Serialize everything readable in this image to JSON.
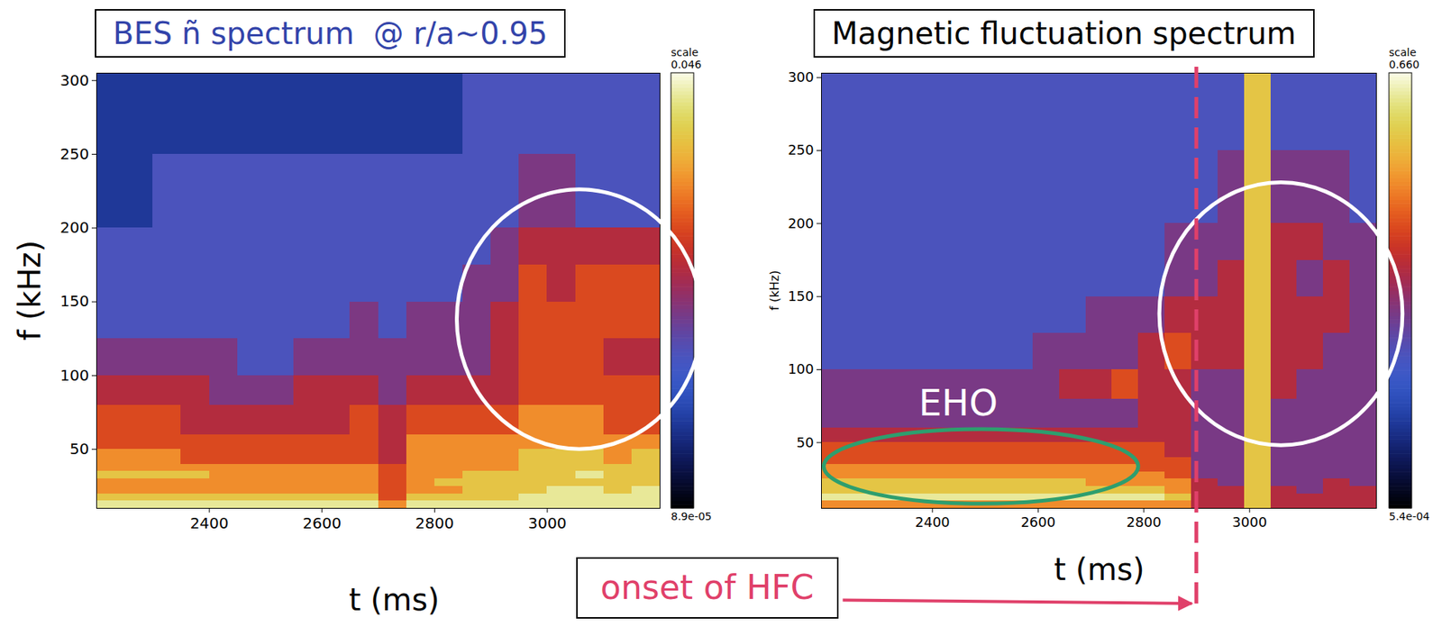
{
  "chart_data": [
    {
      "type": "heatmap",
      "title": "BES ñ spectrum  @ r/a~0.95",
      "x_label": "t (ms)",
      "y_label": "f (kHz)",
      "xlim": [
        2200,
        3200
      ],
      "xticks": [
        2400,
        2600,
        2800,
        3000
      ],
      "ylim": [
        10,
        305
      ],
      "yticks": [
        50,
        100,
        150,
        200,
        250,
        300
      ],
      "x_edges": [
        2200,
        2250,
        2300,
        2350,
        2400,
        2450,
        2500,
        2550,
        2600,
        2650,
        2700,
        2750,
        2800,
        2850,
        2900,
        2950,
        3000,
        3050,
        3100,
        3150,
        3200
      ],
      "y_edges": [
        10,
        15,
        20,
        25,
        30,
        35,
        40,
        50,
        60,
        80,
        100,
        125,
        150,
        175,
        200,
        250,
        305
      ],
      "cells": [
        [
          0.033,
          0.033,
          0.033,
          0.033,
          0.033,
          0.033,
          0.033,
          0.033,
          0.033,
          0.033,
          0.0096,
          0.033,
          0.033,
          0.033,
          0.033,
          0.033,
          0.033,
          0.033,
          0.033,
          0.033
        ],
        [
          0.018,
          0.018,
          0.018,
          0.018,
          0.018,
          0.018,
          0.018,
          0.018,
          0.018,
          0.018,
          0.005,
          0.018,
          0.018,
          0.018,
          0.018,
          0.033,
          0.033,
          0.033,
          0.033,
          0.033
        ],
        [
          0.0096,
          0.0096,
          0.0096,
          0.0096,
          0.0096,
          0.0096,
          0.0096,
          0.0096,
          0.0096,
          0.0096,
          0.005,
          0.0096,
          0.0096,
          0.018,
          0.018,
          0.018,
          0.033,
          0.033,
          0.018,
          0.033
        ],
        [
          0.0096,
          0.0096,
          0.0096,
          0.0096,
          0.0096,
          0.0096,
          0.0096,
          0.0096,
          0.0096,
          0.0096,
          0.005,
          0.0096,
          0.018,
          0.018,
          0.018,
          0.018,
          0.018,
          0.018,
          0.018,
          0.018
        ],
        [
          0.018,
          0.018,
          0.018,
          0.018,
          0.0096,
          0.0096,
          0.0096,
          0.0096,
          0.0096,
          0.0096,
          0.005,
          0.0096,
          0.0096,
          0.018,
          0.018,
          0.018,
          0.018,
          0.033,
          0.018,
          0.018
        ],
        [
          0.0096,
          0.0096,
          0.0096,
          0.0096,
          0.0096,
          0.0096,
          0.0096,
          0.0096,
          0.0096,
          0.0096,
          0.005,
          0.0096,
          0.0096,
          0.0096,
          0.0096,
          0.018,
          0.018,
          0.018,
          0.018,
          0.018
        ],
        [
          0.0096,
          0.0096,
          0.0096,
          0.005,
          0.005,
          0.005,
          0.005,
          0.005,
          0.005,
          0.005,
          0.0028,
          0.0096,
          0.0096,
          0.0096,
          0.0096,
          0.018,
          0.018,
          0.018,
          0.0096,
          0.018
        ],
        [
          0.005,
          0.005,
          0.005,
          0.005,
          0.005,
          0.005,
          0.005,
          0.005,
          0.005,
          0.005,
          0.0028,
          0.0096,
          0.0096,
          0.0096,
          0.0096,
          0.0096,
          0.0096,
          0.0096,
          0.0096,
          0.0096
        ],
        [
          0.005,
          0.005,
          0.005,
          0.0028,
          0.0028,
          0.0028,
          0.0028,
          0.0028,
          0.0028,
          0.005,
          0.0028,
          0.005,
          0.005,
          0.005,
          0.005,
          0.0096,
          0.0096,
          0.0096,
          0.005,
          0.005
        ],
        [
          0.0028,
          0.0028,
          0.0028,
          0.0028,
          0.0015,
          0.0015,
          0.0015,
          0.0028,
          0.0028,
          0.0028,
          0.0015,
          0.0028,
          0.0028,
          0.0028,
          0.0028,
          0.005,
          0.005,
          0.005,
          0.005,
          0.005
        ],
        [
          0.0015,
          0.0015,
          0.0015,
          0.0015,
          0.0015,
          0.0008,
          0.0008,
          0.0015,
          0.0015,
          0.0015,
          0.0015,
          0.0015,
          0.0015,
          0.0015,
          0.0028,
          0.005,
          0.005,
          0.005,
          0.0028,
          0.0028
        ],
        [
          0.0008,
          0.0008,
          0.0008,
          0.0008,
          0.0008,
          0.0008,
          0.0008,
          0.0008,
          0.0008,
          0.0015,
          0.0008,
          0.0015,
          0.0015,
          0.0015,
          0.0028,
          0.005,
          0.005,
          0.005,
          0.005,
          0.005
        ],
        [
          0.0008,
          0.0008,
          0.0008,
          0.0008,
          0.0008,
          0.0008,
          0.0008,
          0.0008,
          0.0008,
          0.0008,
          0.0008,
          0.0008,
          0.0008,
          0.0015,
          0.0015,
          0.005,
          0.0028,
          0.005,
          0.005,
          0.005
        ],
        [
          0.0008,
          0.0008,
          0.0008,
          0.0008,
          0.0008,
          0.0008,
          0.0008,
          0.0008,
          0.0008,
          0.0008,
          0.0008,
          0.0008,
          0.0008,
          0.0008,
          0.0015,
          0.0028,
          0.0028,
          0.0028,
          0.0028,
          0.0028
        ],
        [
          0.0003,
          0.0003,
          0.0008,
          0.0008,
          0.0008,
          0.0008,
          0.0008,
          0.0008,
          0.0008,
          0.0008,
          0.0008,
          0.0008,
          0.0008,
          0.0008,
          0.0008,
          0.0015,
          0.0015,
          0.0008,
          0.0008,
          0.0008
        ],
        [
          0.0003,
          0.0003,
          0.0003,
          0.0003,
          0.0003,
          0.0003,
          0.0003,
          0.0003,
          0.0003,
          0.0003,
          0.0003,
          0.0003,
          0.0003,
          0.0008,
          0.0008,
          0.0008,
          0.0008,
          0.0008,
          0.0008,
          0.0008
        ]
      ],
      "colorbar": {
        "label": "scale",
        "log": true,
        "range": [
          8.9e-05,
          0.046
        ],
        "ticks": [
          {
            "value": 0.046,
            "label": "0.046"
          },
          {
            "value": 8.9e-05,
            "label": "8.9e-05"
          }
        ]
      },
      "annotations": [
        {
          "type": "ellipse",
          "color": "#ffffff",
          "x_range": [
            2840,
            3275
          ],
          "y_range": [
            50,
            226
          ]
        }
      ]
    },
    {
      "type": "heatmap",
      "title": "Magnetic fluctuation spectrum",
      "x_label": "t (ms)",
      "y_label": "f (kHz)",
      "xlim": [
        2190,
        3240
      ],
      "xticks": [
        2400,
        2600,
        2800,
        3000
      ],
      "ylim": [
        5,
        303
      ],
      "yticks": [
        50,
        100,
        150,
        200,
        250,
        300
      ],
      "x_edges": [
        2190,
        2240,
        2290,
        2340,
        2390,
        2440,
        2490,
        2540,
        2590,
        2640,
        2690,
        2740,
        2790,
        2840,
        2890,
        2940,
        2990,
        3040,
        3090,
        3140,
        3190,
        3240
      ],
      "y_edges": [
        5,
        10,
        15,
        20,
        25,
        30,
        35,
        40,
        50,
        60,
        80,
        100,
        125,
        150,
        175,
        200,
        250,
        303
      ],
      "cells": [
        [
          0.11,
          0.11,
          0.11,
          0.11,
          0.11,
          0.11,
          0.11,
          0.11,
          0.11,
          0.11,
          0.11,
          0.11,
          0.11,
          0.11,
          0.027,
          0.027,
          0.23,
          0.027,
          0.027,
          0.027,
          0.027
        ],
        [
          0.46,
          0.46,
          0.46,
          0.46,
          0.46,
          0.46,
          0.46,
          0.46,
          0.46,
          0.46,
          0.46,
          0.46,
          0.46,
          0.23,
          0.027,
          0.027,
          0.23,
          0.027,
          0.027,
          0.027,
          0.027
        ],
        [
          0.23,
          0.23,
          0.23,
          0.23,
          0.23,
          0.23,
          0.23,
          0.23,
          0.23,
          0.23,
          0.23,
          0.23,
          0.23,
          0.11,
          0.027,
          0.027,
          0.23,
          0.027,
          0.013,
          0.027,
          0.027
        ],
        [
          0.23,
          0.23,
          0.23,
          0.23,
          0.23,
          0.23,
          0.23,
          0.23,
          0.23,
          0.23,
          0.11,
          0.11,
          0.11,
          0.11,
          0.027,
          0.013,
          0.23,
          0.013,
          0.013,
          0.027,
          0.013
        ],
        [
          0.11,
          0.11,
          0.11,
          0.11,
          0.11,
          0.11,
          0.11,
          0.11,
          0.11,
          0.11,
          0.11,
          0.11,
          0.11,
          0.055,
          0.013,
          0.013,
          0.23,
          0.013,
          0.013,
          0.013,
          0.013
        ],
        [
          0.11,
          0.11,
          0.11,
          0.11,
          0.11,
          0.11,
          0.11,
          0.11,
          0.11,
          0.11,
          0.11,
          0.11,
          0.055,
          0.055,
          0.013,
          0.013,
          0.23,
          0.013,
          0.013,
          0.013,
          0.013
        ],
        [
          0.055,
          0.055,
          0.055,
          0.055,
          0.055,
          0.055,
          0.055,
          0.055,
          0.055,
          0.055,
          0.055,
          0.055,
          0.055,
          0.055,
          0.013,
          0.013,
          0.23,
          0.013,
          0.013,
          0.013,
          0.013
        ],
        [
          0.055,
          0.055,
          0.055,
          0.055,
          0.055,
          0.055,
          0.055,
          0.055,
          0.055,
          0.055,
          0.055,
          0.055,
          0.055,
          0.027,
          0.013,
          0.013,
          0.23,
          0.013,
          0.013,
          0.013,
          0.013
        ],
        [
          0.027,
          0.027,
          0.027,
          0.027,
          0.027,
          0.027,
          0.027,
          0.027,
          0.027,
          0.027,
          0.027,
          0.027,
          0.027,
          0.027,
          0.013,
          0.013,
          0.23,
          0.013,
          0.013,
          0.013,
          0.013
        ],
        [
          0.013,
          0.013,
          0.013,
          0.013,
          0.013,
          0.013,
          0.013,
          0.013,
          0.013,
          0.013,
          0.013,
          0.013,
          0.027,
          0.027,
          0.013,
          0.013,
          0.23,
          0.013,
          0.013,
          0.013,
          0.013
        ],
        [
          0.013,
          0.013,
          0.013,
          0.013,
          0.013,
          0.013,
          0.013,
          0.013,
          0.013,
          0.027,
          0.027,
          0.055,
          0.027,
          0.027,
          0.013,
          0.013,
          0.23,
          0.027,
          0.013,
          0.013,
          0.013
        ],
        [
          0.0065,
          0.0065,
          0.0065,
          0.0065,
          0.0065,
          0.0065,
          0.0065,
          0.0065,
          0.013,
          0.013,
          0.013,
          0.013,
          0.027,
          0.055,
          0.027,
          0.027,
          0.23,
          0.027,
          0.027,
          0.013,
          0.013
        ],
        [
          0.0065,
          0.0065,
          0.0065,
          0.0065,
          0.0065,
          0.0065,
          0.0065,
          0.0065,
          0.0065,
          0.0065,
          0.013,
          0.013,
          0.013,
          0.027,
          0.027,
          0.027,
          0.23,
          0.027,
          0.027,
          0.027,
          0.013
        ],
        [
          0.0065,
          0.0065,
          0.0065,
          0.0065,
          0.0065,
          0.0065,
          0.0065,
          0.0065,
          0.0065,
          0.0065,
          0.0065,
          0.0065,
          0.0065,
          0.013,
          0.013,
          0.027,
          0.23,
          0.027,
          0.013,
          0.027,
          0.013
        ],
        [
          0.0065,
          0.0065,
          0.0065,
          0.0065,
          0.0065,
          0.0065,
          0.0065,
          0.0065,
          0.0065,
          0.0065,
          0.0065,
          0.0065,
          0.0065,
          0.013,
          0.013,
          0.013,
          0.23,
          0.027,
          0.027,
          0.013,
          0.013
        ],
        [
          0.0065,
          0.0065,
          0.0065,
          0.0065,
          0.0065,
          0.0065,
          0.0065,
          0.0065,
          0.0065,
          0.0065,
          0.0065,
          0.0065,
          0.0065,
          0.0065,
          0.0065,
          0.013,
          0.23,
          0.013,
          0.013,
          0.013,
          0.0065
        ],
        [
          0.0065,
          0.0065,
          0.0065,
          0.0065,
          0.0065,
          0.0065,
          0.0065,
          0.0065,
          0.0065,
          0.0065,
          0.0065,
          0.0065,
          0.0065,
          0.0065,
          0.0065,
          0.0065,
          0.23,
          0.0065,
          0.0065,
          0.0065,
          0.0065
        ]
      ],
      "colorbar": {
        "label": "scale",
        "log": true,
        "range": [
          0.00054,
          0.66
        ],
        "ticks": [
          {
            "value": 0.66,
            "label": "0.660"
          },
          {
            "value": 0.00054,
            "label": "5.4e-04"
          }
        ]
      },
      "annotations": [
        {
          "type": "ellipse",
          "color": "#ffffff",
          "x_range": [
            2830,
            3290
          ],
          "y_range": [
            48,
            228
          ]
        },
        {
          "type": "ellipse",
          "color": "#2e9e6e",
          "x_range": [
            2195,
            2790
          ],
          "y_range": [
            8,
            59
          ],
          "label": "EHO"
        },
        {
          "type": "vline",
          "x": 2900,
          "color": "#e0406a",
          "line_style": "dashed",
          "label": "onset of HFC"
        }
      ]
    }
  ]
}
